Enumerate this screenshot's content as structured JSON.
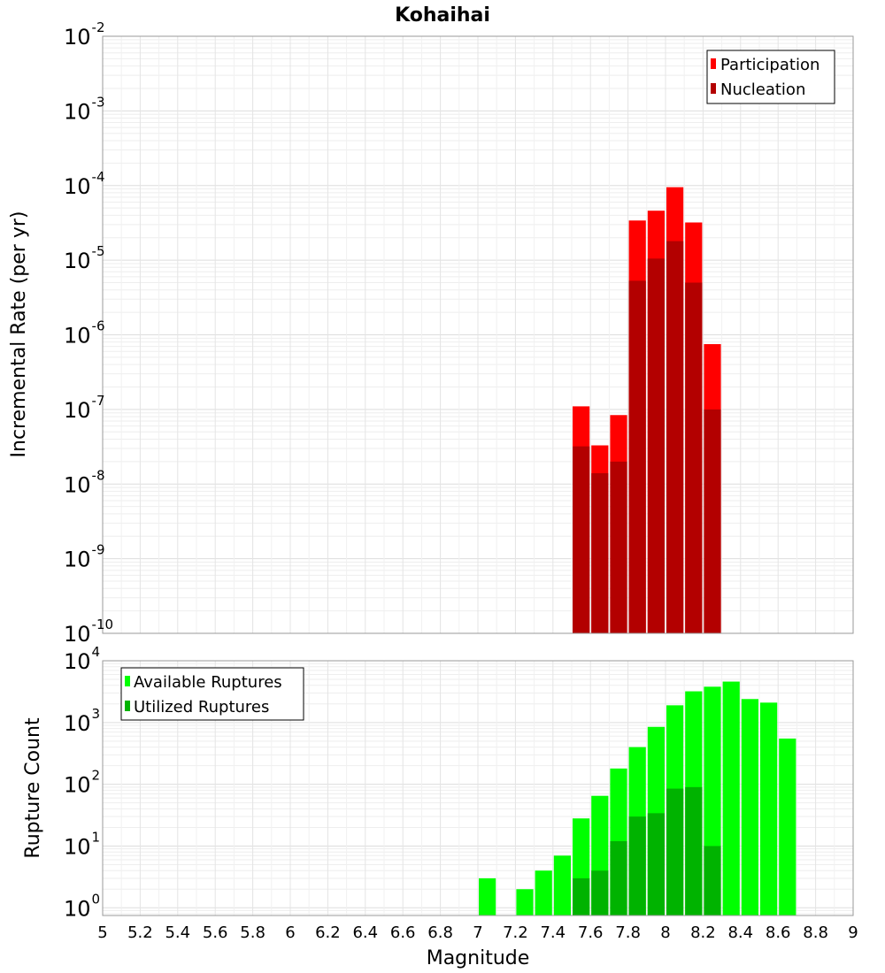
{
  "chart_data": [
    {
      "type": "bar",
      "title": "Kohaihai",
      "ylabel": "Incremental Rate (per yr)",
      "yscale": "log",
      "ylim": [
        1e-10,
        0.01
      ],
      "xlim": [
        5,
        9
      ],
      "grid": true,
      "legend_position": "top-right",
      "bin_width": 0.1,
      "series": [
        {
          "name": "Participation",
          "color": "#ff0000",
          "x": [
            7.55,
            7.65,
            7.75,
            7.85,
            7.95,
            8.05,
            8.15,
            8.25
          ],
          "values": [
            1.1e-07,
            3.3e-08,
            8.4e-08,
            3.4e-05,
            4.6e-05,
            9.5e-05,
            3.2e-05,
            7.5e-07
          ]
        },
        {
          "name": "Nucleation",
          "color": "#b30000",
          "x": [
            7.55,
            7.65,
            7.75,
            7.85,
            7.95,
            8.05,
            8.15,
            8.25
          ],
          "values": [
            3.2e-08,
            1.4e-08,
            2e-08,
            5.3e-06,
            1.05e-05,
            1.8e-05,
            5e-06,
            1e-07
          ]
        }
      ]
    },
    {
      "type": "bar",
      "xlabel": "Magnitude",
      "ylabel": "Rupture Count",
      "yscale": "log",
      "ylim": [
        0.75,
        10000
      ],
      "xlim": [
        5,
        9
      ],
      "grid": true,
      "legend_position": "top-left",
      "bin_width": 0.1,
      "x_ticks": [
        "5",
        "5.2",
        "5.4",
        "5.6",
        "5.8",
        "6",
        "6.2",
        "6.4",
        "6.6",
        "6.8",
        "7",
        "7.2",
        "7.4",
        "7.6",
        "7.8",
        "8",
        "8.2",
        "8.4",
        "8.6",
        "8.8",
        "9"
      ],
      "series": [
        {
          "name": "Available Ruptures",
          "color": "#00ff00",
          "x": [
            7.05,
            7.25,
            7.35,
            7.45,
            7.55,
            7.65,
            7.75,
            7.85,
            7.95,
            8.05,
            8.15,
            8.25,
            8.35,
            8.45,
            8.55,
            8.65
          ],
          "values": [
            3,
            2,
            4,
            7,
            28,
            65,
            180,
            400,
            850,
            1900,
            3200,
            3800,
            4600,
            2400,
            2100,
            550
          ]
        },
        {
          "name": "Utilized Ruptures",
          "color": "#00b300",
          "x": [
            7.55,
            7.65,
            7.75,
            7.85,
            7.95,
            8.05,
            8.15,
            8.25
          ],
          "values": [
            3,
            4,
            12,
            30,
            34,
            85,
            90,
            10
          ]
        }
      ]
    }
  ]
}
